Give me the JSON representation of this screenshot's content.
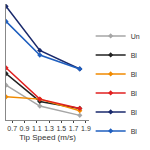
{
  "chart_data": {
    "type": "line",
    "xlabel": "Tip Speed (m/s)",
    "x": [
      0.6,
      1.15,
      1.8
    ],
    "xlim": [
      0.6,
      1.95
    ],
    "xticks": [
      0.7,
      0.9,
      1.1,
      1.3,
      1.5,
      1.7,
      1.9
    ],
    "ylim": [
      0,
      100
    ],
    "tick_labels": "x",
    "grid": false,
    "legend": "right",
    "marker": "diamond",
    "series": [
      {
        "name": "Un",
        "color": "#a6a6a6",
        "values": [
          30,
          12,
          4
        ]
      },
      {
        "name": "Bl",
        "color": "#222222",
        "values": [
          40,
          16,
          10
        ]
      },
      {
        "name": "Bl",
        "color": "#f08a00",
        "values": [
          20,
          18,
          8
        ]
      },
      {
        "name": "Bl",
        "color": "#e02020",
        "values": [
          45,
          18,
          10
        ]
      },
      {
        "name": "Bl",
        "color": "#1a2a6c",
        "values": [
          98,
          60,
          44
        ]
      },
      {
        "name": "Bl",
        "color": "#1f5fbf",
        "values": [
          85,
          56,
          44
        ]
      }
    ]
  }
}
